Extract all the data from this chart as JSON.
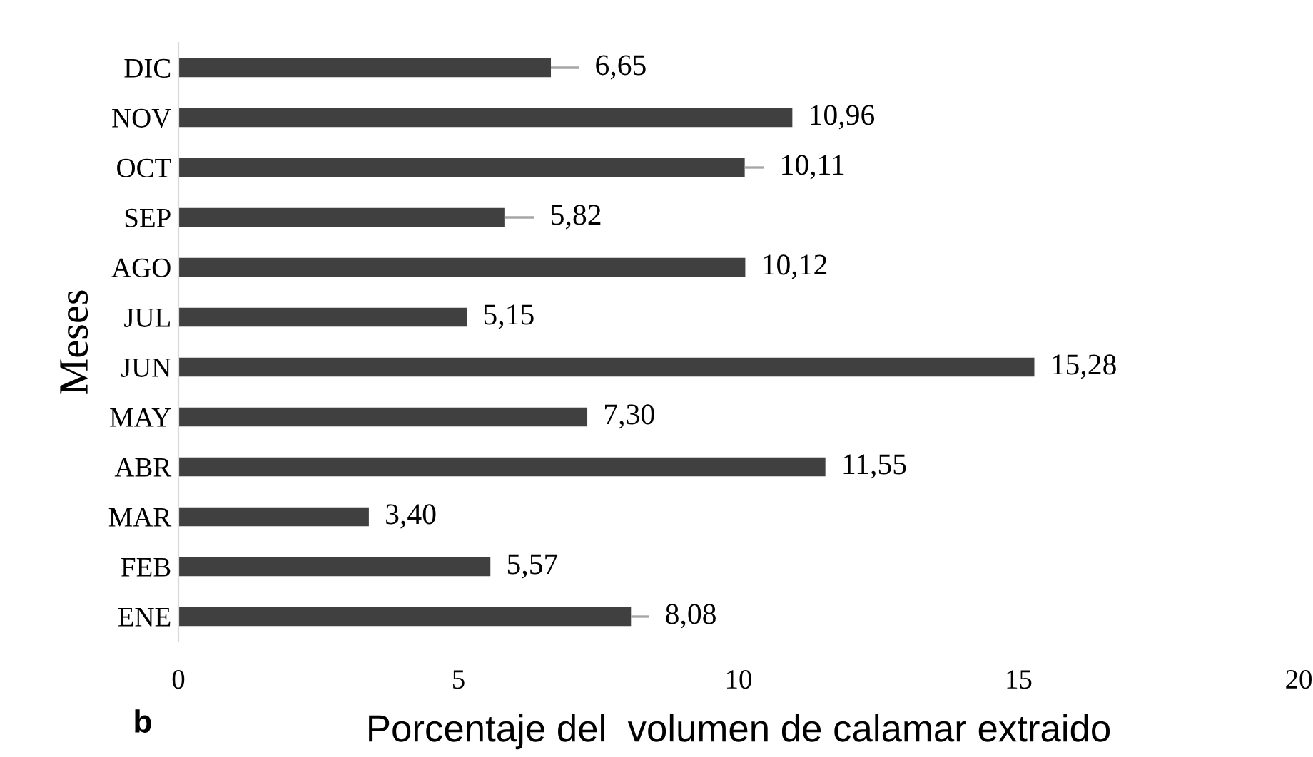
{
  "chart_data": {
    "type": "bar",
    "orientation": "horizontal",
    "categories": [
      "DIC",
      "NOV",
      "OCT",
      "SEP",
      "AGO",
      "JUL",
      "JUN",
      "MAY",
      "ABR",
      "MAR",
      "FEB",
      "ENE"
    ],
    "values": [
      6.65,
      10.96,
      10.11,
      5.82,
      10.12,
      5.15,
      15.28,
      7.3,
      11.55,
      3.4,
      5.57,
      8.08
    ],
    "value_labels": [
      "6,65",
      "10,96",
      "10,11",
      "5,82",
      "10,12",
      "5,15",
      "15,28",
      "7,30",
      "11,55",
      "3,40",
      "5,57",
      "8,08"
    ],
    "errors": [
      [
        6.65,
        7.15
      ],
      null,
      [
        10.11,
        10.45
      ],
      [
        5.82,
        6.35
      ],
      null,
      null,
      null,
      null,
      null,
      null,
      null,
      [
        8.08,
        8.4
      ]
    ],
    "color": "#404040",
    "xlim": [
      0,
      20
    ],
    "xticks": [
      0,
      5,
      10,
      15,
      20
    ],
    "xlabel": "Porcentaje del  volumen de calamar extraido",
    "ylabel": "Meses",
    "annotations": [
      "b"
    ],
    "grid": false
  }
}
